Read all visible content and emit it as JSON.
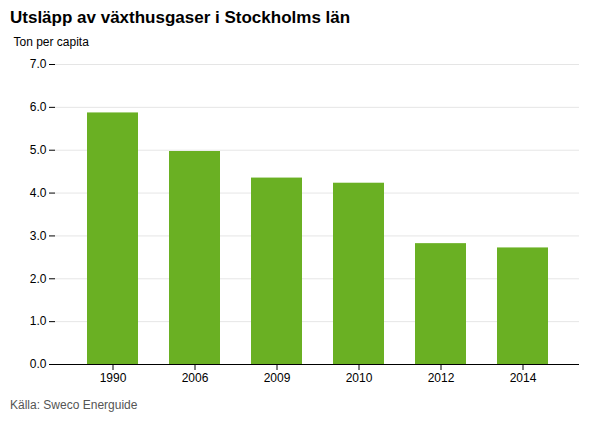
{
  "chart_data": {
    "type": "bar",
    "title": "Utsläpp av växthusgaser i Stockholms län",
    "ylabel": "Ton per capita",
    "source": "Källa: Sweco Energuide",
    "categories": [
      "1990",
      "2006",
      "2009",
      "2010",
      "2012",
      "2014"
    ],
    "values": [
      5.87,
      4.97,
      4.35,
      4.23,
      2.82,
      2.72
    ],
    "color": "#6ab023",
    "ylim": [
      0,
      7
    ],
    "yticks": [
      0,
      1,
      2,
      3,
      4,
      5,
      6,
      7
    ],
    "grid": true
  }
}
